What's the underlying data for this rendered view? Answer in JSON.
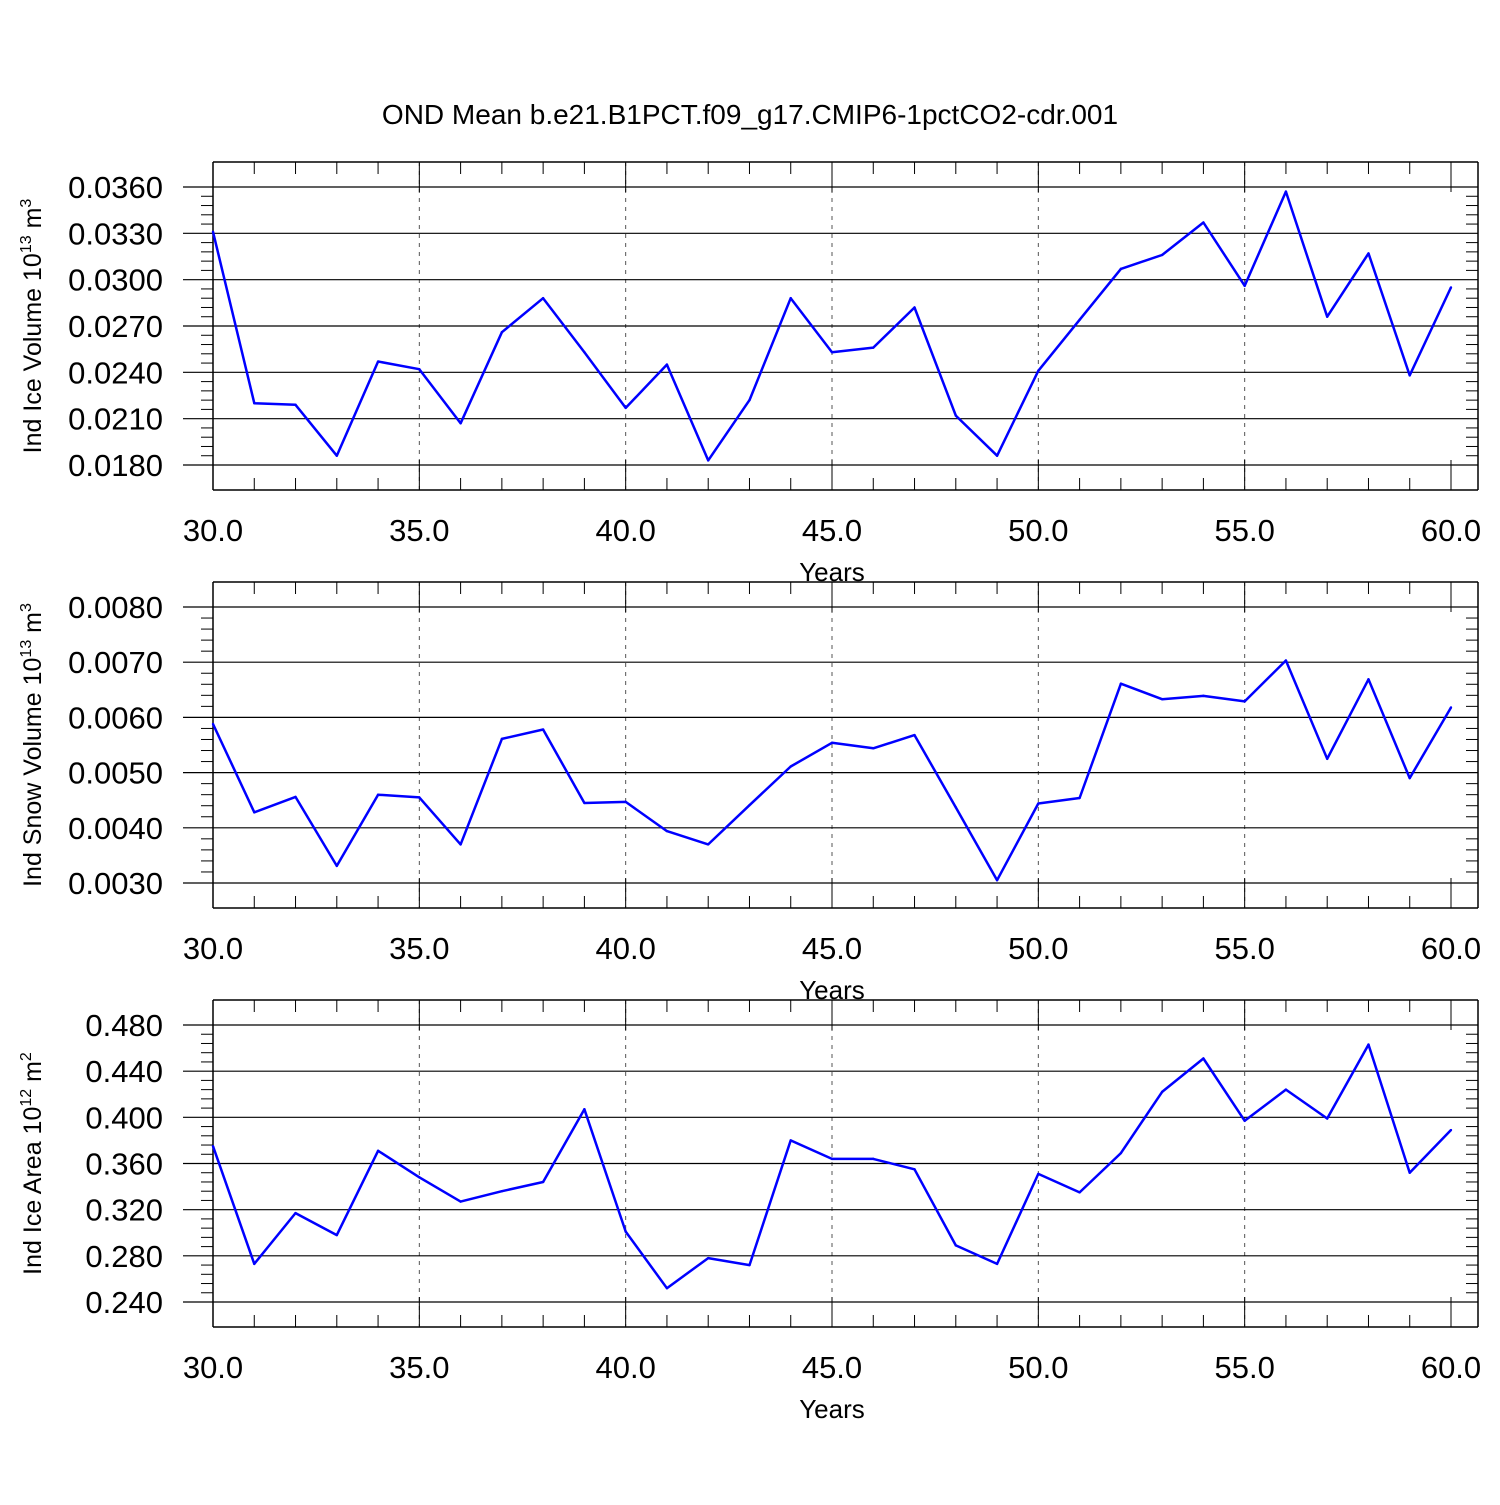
{
  "title": "OND Mean b.e21.B1PCT.f09_g17.CMIP6-1pctCO2-cdr.001",
  "chart_data": [
    {
      "type": "line",
      "ylabel": "Ind Ice Volume 10",
      "ylabel_exp": "13",
      "ylabel_unit": " m",
      "ylabel_unit_exp": "3",
      "xlabel": "Years",
      "xlim": [
        30,
        60
      ],
      "ylim": [
        0.018,
        0.036
      ],
      "yticks": [
        0.018,
        0.021,
        0.024,
        0.027,
        0.03,
        0.033,
        0.036
      ],
      "yticklabels": [
        "0.0180",
        "0.0210",
        "0.0240",
        "0.0270",
        "0.0300",
        "0.0330",
        "0.0360"
      ],
      "xticks": [
        30,
        35,
        40,
        45,
        50,
        55,
        60
      ],
      "xticklabels": [
        "30.0",
        "35.0",
        "40.0",
        "45.0",
        "50.0",
        "55.0",
        "60.0"
      ],
      "grid": "vertical dashed at major x ticks",
      "color": "#0000ff",
      "x": [
        30,
        31,
        32,
        33,
        34,
        35,
        36,
        37,
        38,
        39,
        40,
        41,
        42,
        43,
        44,
        45,
        46,
        47,
        48,
        49,
        50,
        51,
        52,
        53,
        54,
        55,
        56,
        57,
        58,
        59,
        60
      ],
      "y": [
        0.0331,
        0.022,
        0.0219,
        0.0186,
        0.0247,
        0.0242,
        0.0207,
        0.0266,
        0.0288,
        0.0253,
        0.0217,
        0.0245,
        0.0183,
        0.0222,
        0.0288,
        0.0253,
        0.0256,
        0.0282,
        0.0212,
        0.0186,
        0.0241,
        0.0274,
        0.0307,
        0.0316,
        0.0337,
        0.0296,
        0.0357,
        0.0276,
        0.0317,
        0.0238,
        0.0295
      ]
    },
    {
      "type": "line",
      "ylabel": "Ind Snow Volume 10",
      "ylabel_exp": "13",
      "ylabel_unit": " m",
      "ylabel_unit_exp": "3",
      "xlabel": "Years",
      "xlim": [
        30,
        60
      ],
      "ylim": [
        0.003,
        0.008
      ],
      "yticks": [
        0.003,
        0.004,
        0.005,
        0.006,
        0.007,
        0.008
      ],
      "yticklabels": [
        "0.0030",
        "0.0040",
        "0.0050",
        "0.0060",
        "0.0070",
        "0.0080"
      ],
      "xticks": [
        30,
        35,
        40,
        45,
        50,
        55,
        60
      ],
      "xticklabels": [
        "30.0",
        "35.0",
        "40.0",
        "45.0",
        "50.0",
        "55.0",
        "60.0"
      ],
      "grid": "vertical dashed at major x ticks",
      "color": "#0000ff",
      "x": [
        30,
        31,
        32,
        33,
        34,
        35,
        36,
        37,
        38,
        39,
        40,
        41,
        42,
        43,
        44,
        45,
        46,
        47,
        48,
        49,
        50,
        51,
        52,
        53,
        54,
        55,
        56,
        57,
        58,
        59,
        60
      ],
      "y": [
        0.00588,
        0.00428,
        0.00456,
        0.00331,
        0.0046,
        0.00455,
        0.0037,
        0.00561,
        0.00578,
        0.00445,
        0.00447,
        0.00394,
        0.0037,
        0.00441,
        0.00511,
        0.00554,
        0.00544,
        0.00568,
        0.00437,
        0.00305,
        0.00444,
        0.00454,
        0.00661,
        0.00633,
        0.00639,
        0.00629,
        0.00703,
        0.00525,
        0.00669,
        0.0049,
        0.00618
      ]
    },
    {
      "type": "line",
      "ylabel": "Ind Ice Area 10",
      "ylabel_exp": "12",
      "ylabel_unit": " m",
      "ylabel_unit_exp": "2",
      "xlabel": "Years",
      "xlim": [
        30,
        60
      ],
      "ylim": [
        0.24,
        0.48
      ],
      "yticks": [
        0.24,
        0.28,
        0.32,
        0.36,
        0.4,
        0.44,
        0.48
      ],
      "yticklabels": [
        "0.240",
        "0.280",
        "0.320",
        "0.360",
        "0.400",
        "0.440",
        "0.480"
      ],
      "xticks": [
        30,
        35,
        40,
        45,
        50,
        55,
        60
      ],
      "xticklabels": [
        "30.0",
        "35.0",
        "40.0",
        "45.0",
        "50.0",
        "55.0",
        "60.0"
      ],
      "grid": "vertical dashed at major x ticks",
      "color": "#0000ff",
      "x": [
        30,
        31,
        32,
        33,
        34,
        35,
        36,
        37,
        38,
        39,
        40,
        41,
        42,
        43,
        44,
        45,
        46,
        47,
        48,
        49,
        50,
        51,
        52,
        53,
        54,
        55,
        56,
        57,
        58,
        59,
        60
      ],
      "y": [
        0.375,
        0.273,
        0.317,
        0.298,
        0.371,
        0.348,
        0.327,
        0.336,
        0.344,
        0.407,
        0.301,
        0.252,
        0.278,
        0.272,
        0.38,
        0.364,
        0.364,
        0.355,
        0.289,
        0.273,
        0.351,
        0.335,
        0.369,
        0.422,
        0.451,
        0.397,
        0.424,
        0.399,
        0.463,
        0.352,
        0.389
      ]
    }
  ]
}
